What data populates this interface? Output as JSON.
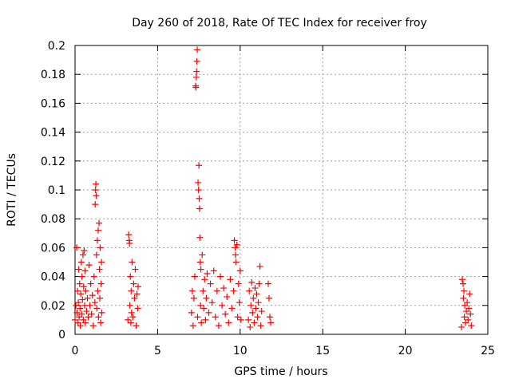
{
  "chart_data": {
    "type": "scatter",
    "title": "Day 260 of 2018, Rate Of TEC Index for receiver froy",
    "xlabel": "GPS time / hours",
    "ylabel": "ROTI / TECUs",
    "xlim": [
      0,
      25
    ],
    "ylim": [
      0,
      0.2
    ],
    "xticks": [
      0,
      5,
      10,
      15,
      20,
      25
    ],
    "xtick_labels": [
      "0",
      "5",
      "10",
      "15",
      "20",
      "25"
    ],
    "yticks": [
      0,
      0.02,
      0.04,
      0.06,
      0.08,
      0.1,
      0.12,
      0.14,
      0.16,
      0.18,
      0.2
    ],
    "ytick_labels": [
      "0",
      "0.02",
      "0.04",
      "0.06",
      "0.08",
      "0.1",
      "0.12",
      "0.14",
      "0.16",
      "0.18",
      "0.2"
    ],
    "grid": true,
    "marker": "+",
    "marker_color": "#ff0000",
    "series": [
      {
        "values": [
          [
            0.0,
            0.01
          ],
          [
            0.05,
            0.02
          ],
          [
            0.1,
            0.06
          ],
          [
            0.12,
            0.015
          ],
          [
            0.15,
            0.03
          ],
          [
            0.18,
            0.008
          ],
          [
            0.2,
            0.022
          ],
          [
            0.22,
            0.045
          ],
          [
            0.25,
            0.012
          ],
          [
            0.28,
            0.035
          ],
          [
            0.3,
            0.018
          ],
          [
            0.32,
            0.006
          ],
          [
            0.35,
            0.028
          ],
          [
            0.38,
            0.05
          ],
          [
            0.4,
            0.014
          ],
          [
            0.42,
            0.04
          ],
          [
            0.45,
            0.024
          ],
          [
            0.48,
            0.055
          ],
          [
            0.5,
            0.01
          ],
          [
            0.52,
            0.033
          ],
          [
            0.55,
            0.058
          ],
          [
            0.58,
            0.02
          ],
          [
            0.6,
            0.044
          ],
          [
            0.62,
            0.008
          ],
          [
            0.65,
            0.03
          ],
          [
            0.7,
            0.016
          ],
          [
            0.75,
            0.025
          ],
          [
            0.8,
            0.012
          ],
          [
            0.85,
            0.048
          ],
          [
            0.9,
            0.02
          ],
          [
            0.95,
            0.035
          ],
          [
            1.0,
            0.014
          ],
          [
            1.05,
            0.027
          ],
          [
            1.1,
            0.006
          ],
          [
            1.15,
            0.04
          ],
          [
            1.2,
            0.022
          ],
          [
            1.22,
            0.09
          ],
          [
            1.24,
            0.1
          ],
          [
            1.26,
            0.104
          ],
          [
            1.28,
            0.096
          ],
          [
            1.3,
            0.055
          ],
          [
            1.32,
            0.018
          ],
          [
            1.35,
            0.065
          ],
          [
            1.38,
            0.03
          ],
          [
            1.4,
            0.072
          ],
          [
            1.42,
            0.012
          ],
          [
            1.45,
            0.077
          ],
          [
            1.48,
            0.045
          ],
          [
            1.5,
            0.025
          ],
          [
            1.52,
            0.06
          ],
          [
            1.55,
            0.008
          ],
          [
            1.58,
            0.035
          ],
          [
            1.6,
            0.05
          ],
          [
            1.62,
            0.015
          ]
        ]
      },
      {
        "values": [
          [
            3.2,
            0.01
          ],
          [
            3.25,
            0.069
          ],
          [
            3.28,
            0.065
          ],
          [
            3.3,
            0.063
          ],
          [
            3.32,
            0.02
          ],
          [
            3.35,
            0.04
          ],
          [
            3.38,
            0.008
          ],
          [
            3.4,
            0.03
          ],
          [
            3.42,
            0.015
          ],
          [
            3.45,
            0.05
          ],
          [
            3.5,
            0.012
          ],
          [
            3.55,
            0.035
          ],
          [
            3.6,
            0.025
          ],
          [
            3.65,
            0.045
          ],
          [
            3.7,
            0.006
          ],
          [
            3.75,
            0.028
          ],
          [
            3.8,
            0.018
          ],
          [
            3.82,
            0.033
          ]
        ]
      },
      {
        "values": [
          [
            7.05,
            0.015
          ],
          [
            7.1,
            0.03
          ],
          [
            7.15,
            0.006
          ],
          [
            7.2,
            0.025
          ],
          [
            7.25,
            0.04
          ],
          [
            7.3,
            0.172
          ],
          [
            7.32,
            0.171
          ],
          [
            7.34,
            0.178
          ],
          [
            7.36,
            0.182
          ],
          [
            7.38,
            0.189
          ],
          [
            7.4,
            0.197
          ],
          [
            7.42,
            0.012
          ],
          [
            7.45,
            0.105
          ],
          [
            7.48,
            0.1
          ],
          [
            7.5,
            0.117
          ],
          [
            7.52,
            0.094
          ],
          [
            7.54,
            0.087
          ],
          [
            7.56,
            0.067
          ],
          [
            7.58,
            0.05
          ],
          [
            7.6,
            0.02
          ],
          [
            7.62,
            0.045
          ],
          [
            7.65,
            0.008
          ],
          [
            7.7,
            0.055
          ],
          [
            7.75,
            0.03
          ],
          [
            7.8,
            0.018
          ],
          [
            7.85,
            0.038
          ],
          [
            7.9,
            0.01
          ],
          [
            7.95,
            0.025
          ],
          [
            8.0,
            0.042
          ],
          [
            8.1,
            0.015
          ],
          [
            8.2,
            0.035
          ],
          [
            8.3,
            0.022
          ],
          [
            8.4,
            0.044
          ],
          [
            8.5,
            0.012
          ],
          [
            8.6,
            0.03
          ],
          [
            8.7,
            0.006
          ],
          [
            8.8,
            0.04
          ],
          [
            8.9,
            0.02
          ],
          [
            9.0,
            0.032
          ],
          [
            9.1,
            0.014
          ],
          [
            9.2,
            0.026
          ],
          [
            9.3,
            0.008
          ],
          [
            9.4,
            0.038
          ],
          [
            9.5,
            0.018
          ],
          [
            9.6,
            0.03
          ],
          [
            9.65,
            0.065
          ],
          [
            9.7,
            0.06
          ],
          [
            9.72,
            0.055
          ],
          [
            9.75,
            0.05
          ],
          [
            9.8,
            0.062
          ],
          [
            9.85,
            0.012
          ],
          [
            9.9,
            0.035
          ],
          [
            9.95,
            0.022
          ],
          [
            10.0,
            0.044
          ],
          [
            10.05,
            0.01
          ]
        ]
      },
      {
        "values": [
          [
            10.5,
            0.01
          ],
          [
            10.55,
            0.03
          ],
          [
            10.6,
            0.005
          ],
          [
            10.65,
            0.02
          ],
          [
            10.7,
            0.036
          ],
          [
            10.75,
            0.015
          ],
          [
            10.8,
            0.025
          ],
          [
            10.85,
            0.008
          ],
          [
            10.9,
            0.032
          ],
          [
            10.95,
            0.018
          ],
          [
            11.0,
            0.028
          ],
          [
            11.05,
            0.012
          ],
          [
            11.1,
            0.022
          ],
          [
            11.15,
            0.035
          ],
          [
            11.2,
            0.047
          ],
          [
            11.25,
            0.006
          ],
          [
            11.3,
            0.016
          ],
          [
            11.7,
            0.035
          ],
          [
            11.75,
            0.025
          ],
          [
            11.8,
            0.012
          ],
          [
            11.85,
            0.008
          ]
        ]
      },
      {
        "values": [
          [
            23.4,
            0.005
          ],
          [
            23.45,
            0.038
          ],
          [
            23.5,
            0.035
          ],
          [
            23.52,
            0.025
          ],
          [
            23.55,
            0.03
          ],
          [
            23.58,
            0.012
          ],
          [
            23.6,
            0.02
          ],
          [
            23.65,
            0.008
          ],
          [
            23.7,
            0.016
          ],
          [
            23.75,
            0.022
          ],
          [
            23.8,
            0.01
          ],
          [
            23.85,
            0.018
          ],
          [
            23.9,
            0.028
          ],
          [
            23.95,
            0.014
          ],
          [
            24.0,
            0.006
          ]
        ]
      }
    ]
  }
}
